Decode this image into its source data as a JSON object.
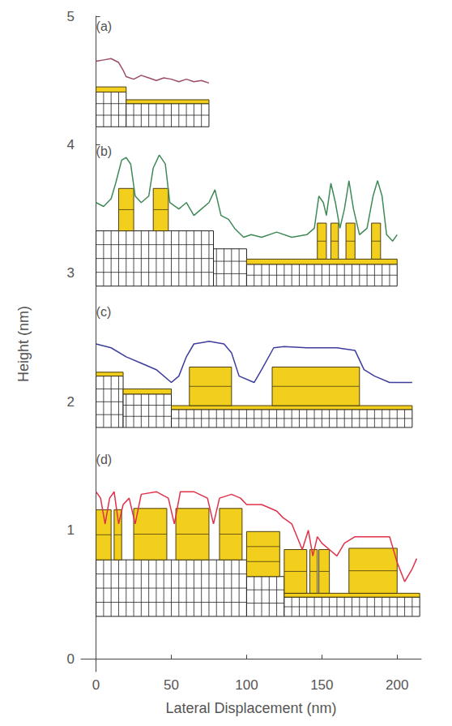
{
  "chart_data": {
    "type": "line",
    "x_label": "Lateral Displacement (nm)",
    "y_label": "Height (nm)",
    "xlim": [
      -10,
      216
    ],
    "xticks": [
      0,
      50,
      100,
      150,
      200
    ],
    "ylim": [
      -0.1,
      5
    ],
    "yticks": [
      0,
      1,
      2,
      3,
      4,
      5
    ],
    "grid": false,
    "series": [
      {
        "label": "(a)",
        "color": "#9c4b6b",
        "x": [
          0,
          5,
          10,
          15,
          18,
          20,
          25,
          30,
          35,
          40,
          45,
          50,
          55,
          60,
          65,
          70,
          75
        ],
        "values": [
          4.65,
          4.66,
          4.67,
          4.64,
          4.58,
          4.53,
          4.51,
          4.54,
          4.52,
          4.5,
          4.52,
          4.51,
          4.49,
          4.51,
          4.49,
          4.5,
          4.48
        ],
        "blocks": [
          {
            "kind": "substrate",
            "x": [
              0,
              20
            ],
            "y": [
              4.14,
              4.41
            ],
            "layers": 3
          },
          {
            "kind": "film",
            "x": [
              0,
              20
            ],
            "y": [
              4.41,
              4.45
            ],
            "layers": 1
          },
          {
            "kind": "substrate",
            "x": [
              20,
              75
            ],
            "y": [
              4.14,
              4.32
            ],
            "layers": 2
          },
          {
            "kind": "film",
            "x": [
              20,
              75
            ],
            "y": [
              4.32,
              4.35
            ],
            "layers": 1
          }
        ]
      },
      {
        "label": "(b)",
        "color": "#3f8a57",
        "x": [
          0,
          5,
          10,
          13,
          17,
          20,
          23,
          26,
          30,
          35,
          38,
          42,
          46,
          49,
          55,
          60,
          65,
          70,
          75,
          79,
          83,
          88,
          92,
          98,
          103,
          110,
          120,
          130,
          140,
          145,
          148,
          151,
          153,
          156,
          159,
          162,
          165,
          168,
          171,
          175,
          180,
          184,
          187,
          190,
          193,
          197,
          200
        ],
        "values": [
          3.55,
          3.52,
          3.58,
          3.7,
          3.88,
          3.9,
          3.85,
          3.6,
          3.55,
          3.6,
          3.82,
          3.92,
          3.85,
          3.55,
          3.5,
          3.55,
          3.45,
          3.5,
          3.55,
          3.65,
          3.45,
          3.42,
          3.35,
          3.28,
          3.3,
          3.28,
          3.32,
          3.28,
          3.3,
          3.35,
          3.6,
          3.55,
          3.45,
          3.7,
          3.55,
          3.35,
          3.5,
          3.72,
          3.5,
          3.3,
          3.35,
          3.6,
          3.72,
          3.6,
          3.3,
          3.25,
          3.3
        ],
        "blocks": [
          {
            "kind": "substrate",
            "x": [
              0,
              78
            ],
            "y": [
              2.9,
              3.33
            ],
            "layers": 4
          },
          {
            "kind": "substrate",
            "x": [
              78,
              100
            ],
            "y": [
              2.9,
              3.19
            ],
            "layers": 3
          },
          {
            "kind": "substrate",
            "x": [
              100,
              200
            ],
            "y": [
              2.9,
              3.07
            ],
            "layers": 2
          },
          {
            "kind": "film",
            "x": [
              100,
              200
            ],
            "y": [
              3.07,
              3.11
            ],
            "layers": 1
          },
          {
            "kind": "film",
            "x": [
              15,
              25
            ],
            "y": [
              3.33,
              3.66
            ],
            "layers": 2
          },
          {
            "kind": "film",
            "x": [
              38,
              48
            ],
            "y": [
              3.33,
              3.66
            ],
            "layers": 2
          },
          {
            "kind": "film",
            "x": [
              147,
              153
            ],
            "y": [
              3.11,
              3.39
            ],
            "layers": 2
          },
          {
            "kind": "film",
            "x": [
              156,
              161
            ],
            "y": [
              3.11,
              3.39
            ],
            "layers": 2
          },
          {
            "kind": "film",
            "x": [
              166,
              172
            ],
            "y": [
              3.11,
              3.39
            ],
            "layers": 2
          },
          {
            "kind": "film",
            "x": [
              183,
              189
            ],
            "y": [
              3.11,
              3.39
            ],
            "layers": 2
          }
        ]
      },
      {
        "label": "(c)",
        "color": "#3d3d9c",
        "x": [
          0,
          10,
          20,
          30,
          40,
          50,
          55,
          60,
          65,
          75,
          85,
          90,
          95,
          105,
          110,
          118,
          125,
          140,
          160,
          172,
          178,
          185,
          195,
          205,
          210
        ],
        "values": [
          2.45,
          2.42,
          2.35,
          2.3,
          2.25,
          2.15,
          2.2,
          2.35,
          2.45,
          2.47,
          2.45,
          2.38,
          2.2,
          2.15,
          2.25,
          2.42,
          2.43,
          2.42,
          2.42,
          2.4,
          2.25,
          2.2,
          2.15,
          2.15,
          2.15
        ],
        "blocks": [
          {
            "kind": "substrate",
            "x": [
              0,
              18
            ],
            "y": [
              1.8,
              2.2
            ],
            "layers": 4
          },
          {
            "kind": "film",
            "x": [
              0,
              18
            ],
            "y": [
              2.2,
              2.23
            ],
            "layers": 1
          },
          {
            "kind": "substrate",
            "x": [
              18,
              50
            ],
            "y": [
              1.8,
              2.06
            ],
            "layers": 3
          },
          {
            "kind": "film",
            "x": [
              18,
              50
            ],
            "y": [
              2.06,
              2.1
            ],
            "layers": 1
          },
          {
            "kind": "substrate",
            "x": [
              50,
              210
            ],
            "y": [
              1.8,
              1.94
            ],
            "layers": 2
          },
          {
            "kind": "film",
            "x": [
              50,
              210
            ],
            "y": [
              1.94,
              1.97
            ],
            "layers": 1
          },
          {
            "kind": "film",
            "x": [
              62,
              90
            ],
            "y": [
              1.97,
              2.27
            ],
            "layers": 2
          },
          {
            "kind": "film",
            "x": [
              117,
              175
            ],
            "y": [
              1.97,
              2.27
            ],
            "layers": 2
          }
        ]
      },
      {
        "label": "(d)",
        "color": "#e0304a",
        "x": [
          0,
          3,
          6,
          9,
          12,
          15,
          18,
          22,
          26,
          30,
          40,
          48,
          52,
          56,
          65,
          74,
          78,
          82,
          90,
          96,
          100,
          110,
          120,
          124,
          130,
          137,
          141,
          144,
          147,
          150,
          155,
          160,
          165,
          172,
          185,
          195,
          200,
          205,
          210,
          213
        ],
        "values": [
          1.3,
          1.25,
          1.05,
          1.25,
          1.3,
          1.05,
          1.2,
          1.25,
          1.05,
          1.28,
          1.3,
          1.25,
          1.05,
          1.3,
          1.3,
          1.25,
          1.05,
          1.25,
          1.28,
          1.25,
          1.2,
          1.2,
          1.15,
          1.1,
          1.05,
          0.85,
          1.0,
          0.8,
          0.95,
          0.9,
          0.85,
          0.8,
          0.9,
          0.95,
          0.95,
          0.95,
          0.75,
          0.6,
          0.7,
          0.78
        ],
        "blocks": [
          {
            "kind": "substrate",
            "x": [
              0,
              100
            ],
            "y": [
              0.33,
              0.77
            ],
            "layers": 4
          },
          {
            "kind": "substrate",
            "x": [
              100,
              125
            ],
            "y": [
              0.33,
              0.64
            ],
            "layers": 3
          },
          {
            "kind": "substrate",
            "x": [
              125,
              215
            ],
            "y": [
              0.33,
              0.48
            ],
            "layers": 2
          },
          {
            "kind": "film",
            "x": [
              125,
              215
            ],
            "y": [
              0.48,
              0.51
            ],
            "layers": 1
          },
          {
            "kind": "film",
            "x": [
              0,
              10
            ],
            "y": [
              0.77,
              1.16
            ],
            "layers": 2
          },
          {
            "kind": "film",
            "x": [
              12,
              17
            ],
            "y": [
              0.77,
              1.16
            ],
            "layers": 2
          },
          {
            "kind": "film",
            "x": [
              25,
              47
            ],
            "y": [
              0.77,
              1.17
            ],
            "layers": 2
          },
          {
            "kind": "film",
            "x": [
              53,
              75
            ],
            "y": [
              0.77,
              1.17
            ],
            "layers": 2
          },
          {
            "kind": "film",
            "x": [
              82,
              97
            ],
            "y": [
              0.77,
              1.17
            ],
            "layers": 2
          },
          {
            "kind": "film",
            "x": [
              100,
              122
            ],
            "y": [
              0.64,
              0.99
            ],
            "layers": 3
          },
          {
            "kind": "film",
            "x": [
              125,
              140
            ],
            "y": [
              0.51,
              0.85
            ],
            "layers": 2
          },
          {
            "kind": "film",
            "x": [
              142,
              147
            ],
            "y": [
              0.51,
              0.85
            ],
            "layers": 2
          },
          {
            "kind": "film",
            "x": [
              148,
              155
            ],
            "y": [
              0.51,
              0.85
            ],
            "layers": 2
          },
          {
            "kind": "film",
            "x": [
              168,
              200
            ],
            "y": [
              0.51,
              0.86
            ],
            "layers": 2
          }
        ]
      }
    ]
  }
}
